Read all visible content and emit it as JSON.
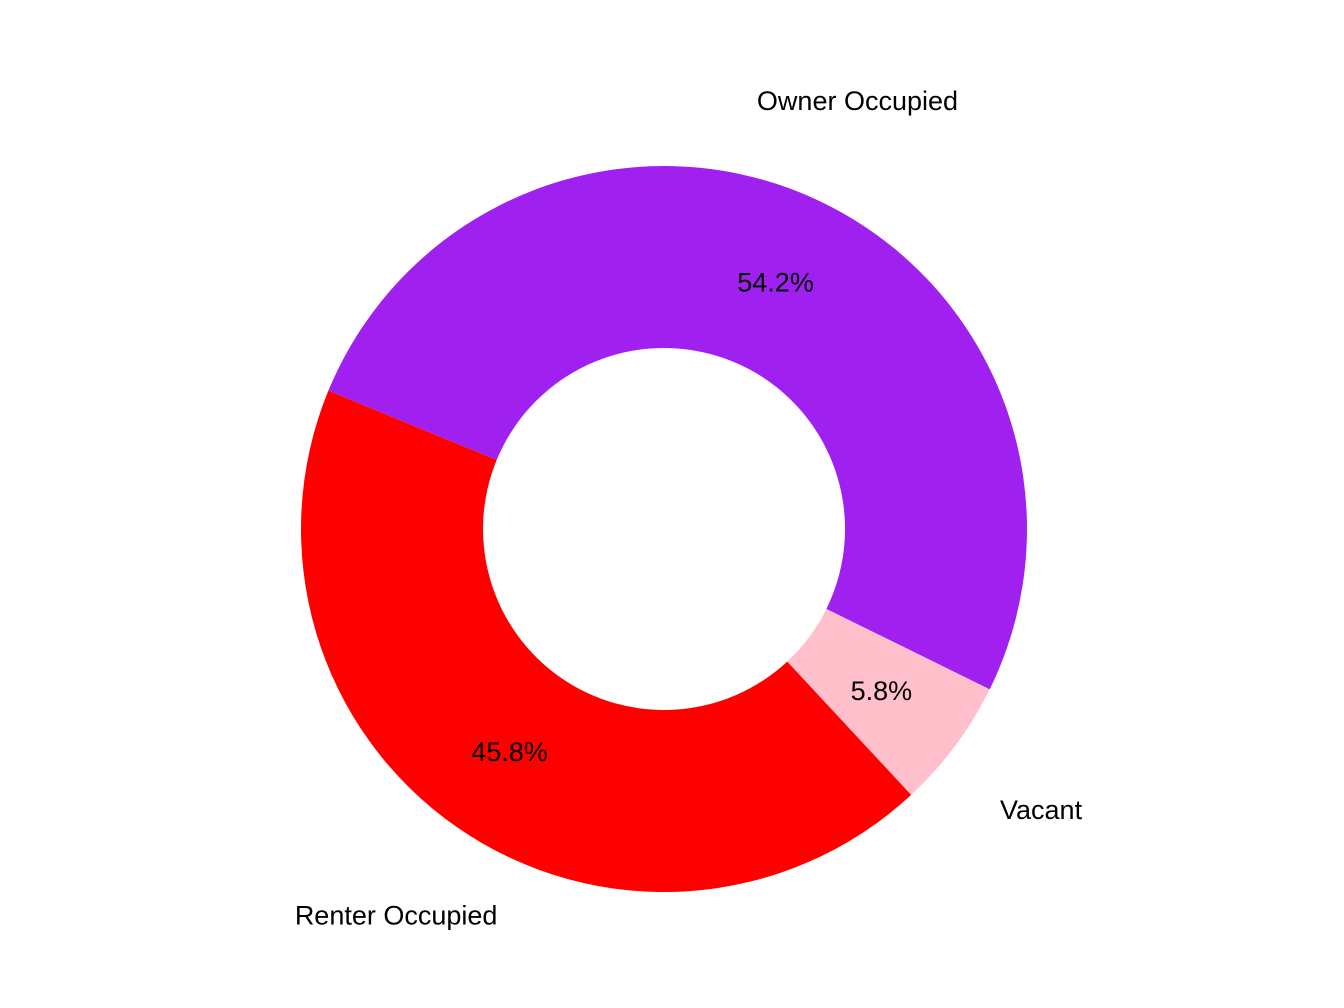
{
  "figure": {
    "background_color": "#FFFFFF",
    "text_color": "#000000"
  },
  "chart_data": {
    "type": "pie",
    "variant": "donut",
    "title": "",
    "legend": "none",
    "labels_layout": "category names outside ring, percent labels inside ring at mid-radius",
    "donut_hole_ratio": 0.5,
    "start_angle_deg_clockwise_from_top": 292.4,
    "direction": "clockwise",
    "categories": [
      "Owner Occupied",
      "Vacant",
      "Renter Occupied"
    ],
    "slices": [
      {
        "label": "Owner Occupied",
        "percent_label": "54.2%",
        "percent_value": 54.2,
        "ring_fraction": 0.5106,
        "color": "#A020F0"
      },
      {
        "label": "Vacant",
        "percent_label": "5.8%",
        "percent_value": 5.8,
        "ring_fraction": 0.058,
        "color": "#FFC0CB"
      },
      {
        "label": "Renter Occupied",
        "percent_label": "45.8%",
        "percent_value": 45.8,
        "ring_fraction": 0.4314,
        "color": "#FF0000"
      }
    ]
  }
}
